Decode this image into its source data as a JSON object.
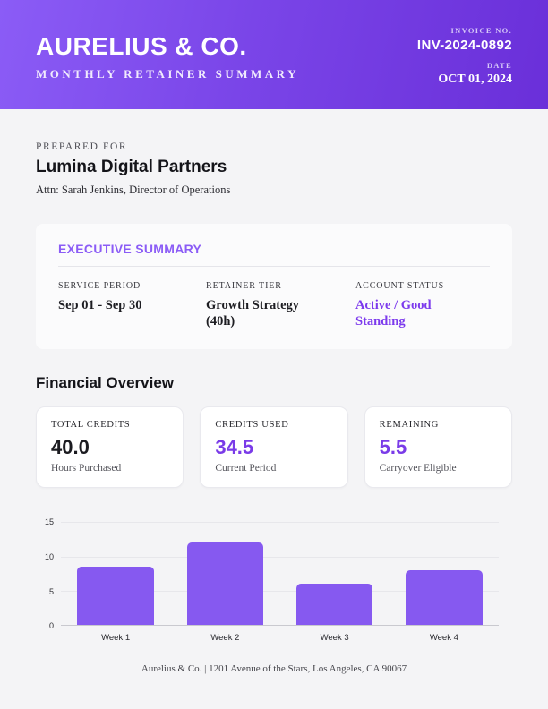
{
  "header": {
    "company": "AURELIUS & CO.",
    "subtitle": "MONTHLY RETAINER SUMMARY",
    "invoice_label": "INVOICE NO.",
    "invoice_no": "INV-2024-0892",
    "date_label": "DATE",
    "date": "OCT 01, 2024"
  },
  "client": {
    "prepared_for_label": "PREPARED FOR",
    "name": "Lumina Digital Partners",
    "attn": "Attn: Sarah Jenkins, Director of Operations"
  },
  "executive_summary": {
    "title": "EXECUTIVE SUMMARY",
    "fields": [
      {
        "label": "SERVICE PERIOD",
        "value": "Sep 01 - Sep 30"
      },
      {
        "label": "RETAINER TIER",
        "value": "Growth Strategy (40h)"
      },
      {
        "label": "ACCOUNT STATUS",
        "value": "Active / Good Standing"
      }
    ]
  },
  "financial": {
    "title": "Financial Overview",
    "stats": [
      {
        "label": "TOTAL CREDITS",
        "value": "40.0",
        "sub": "Hours Purchased"
      },
      {
        "label": "CREDITS USED",
        "value": "34.5",
        "sub": "Current Period"
      },
      {
        "label": "REMAINING",
        "value": "5.5",
        "sub": "Carryover Eligible"
      }
    ]
  },
  "chart_data": {
    "type": "bar",
    "categories": [
      "Week 1",
      "Week 2",
      "Week 3",
      "Week 4"
    ],
    "values": [
      8.5,
      12,
      6,
      8
    ],
    "title": "",
    "xlabel": "",
    "ylabel": "",
    "yticks": [
      0,
      5,
      10,
      15
    ],
    "ylim": [
      0,
      15
    ],
    "grid": true,
    "legend": false,
    "bar_color": "#8659f0"
  },
  "footer": {
    "text": "Aurelius & Co. | 1201 Avenue of the Stars, Los Angeles, CA 90067"
  },
  "colors": {
    "header_gradient_start": "#8b5cf6",
    "header_gradient_end": "#6a2fd9",
    "accent_purple": "#7c3aed",
    "stat_number_purple": "#7a3be8",
    "bar_purple": "#8659f0",
    "page_background": "#f4f4f6"
  }
}
